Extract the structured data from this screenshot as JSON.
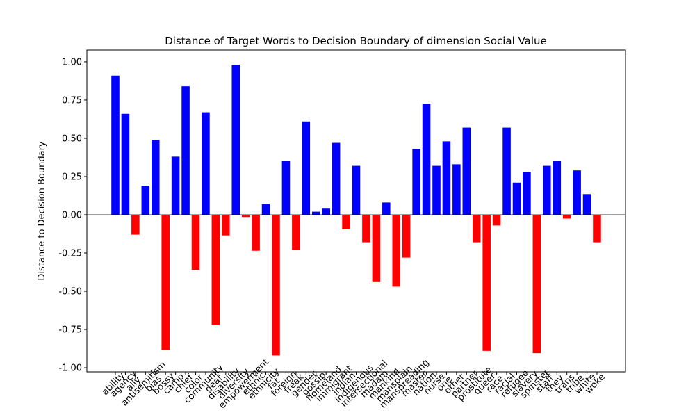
{
  "chart_data": {
    "type": "bar",
    "title": "Distance of Target Words to Decision Boundary of dimension Social Value",
    "y_label": "Distance to Decision Boundary",
    "categories": [
      "ability",
      "agency",
      "ally",
      "antisemitism",
      "bias",
      "bossy",
      "camp",
      "chief",
      "color",
      "community",
      "deaf",
      "disability",
      "diversity",
      "empowerment",
      "ethnic",
      "ethnicity",
      "fat",
      "foreign",
      "freak",
      "gender",
      "gossip",
      "homeland",
      "immigrant",
      "indian",
      "indigenous",
      "intersectional",
      "madam",
      "mankind",
      "mansplain",
      "manspreading",
      "master",
      "nation",
      "nurse",
      "one",
      "other",
      "partner",
      "prostitute",
      "queer",
      "race",
      "racial",
      "refugee",
      "slavery",
      "spinster",
      "staff",
      "they",
      "trans",
      "tribe",
      "white",
      "woke"
    ],
    "values": [
      0.91,
      0.66,
      -0.13,
      0.19,
      0.49,
      -0.885,
      0.38,
      0.84,
      -0.36,
      0.67,
      -0.72,
      -0.135,
      0.98,
      -0.015,
      -0.235,
      0.07,
      -0.92,
      0.35,
      -0.23,
      0.61,
      0.02,
      0.04,
      0.47,
      -0.095,
      0.32,
      -0.18,
      -0.44,
      0.08,
      -0.47,
      -0.28,
      0.43,
      0.725,
      0.32,
      0.48,
      0.33,
      0.57,
      -0.18,
      -0.89,
      -0.07,
      0.57,
      0.21,
      0.28,
      -0.905,
      0.32,
      0.35,
      -0.025,
      0.29,
      0.135,
      -0.18
    ],
    "positive_color": "#0000ff",
    "negative_color": "#ff0000",
    "xlim": [
      -2.84,
      50.84
    ],
    "ylim": [
      -1.027,
      1.077
    ],
    "yticks": [
      {
        "value": -1,
        "label": "-1.00"
      },
      {
        "value": -0.75,
        "label": "-0.75"
      },
      {
        "value": -0.5,
        "label": "-0.50"
      },
      {
        "value": -0.25,
        "label": "-0.25"
      },
      {
        "value": 0,
        "label": "0.00"
      },
      {
        "value": 0.25,
        "label": "0.25"
      },
      {
        "value": 0.5,
        "label": "0.50"
      },
      {
        "value": 0.75,
        "label": "0.75"
      },
      {
        "value": 1,
        "label": "1.00"
      }
    ],
    "zero_line": true,
    "grid": false
  }
}
